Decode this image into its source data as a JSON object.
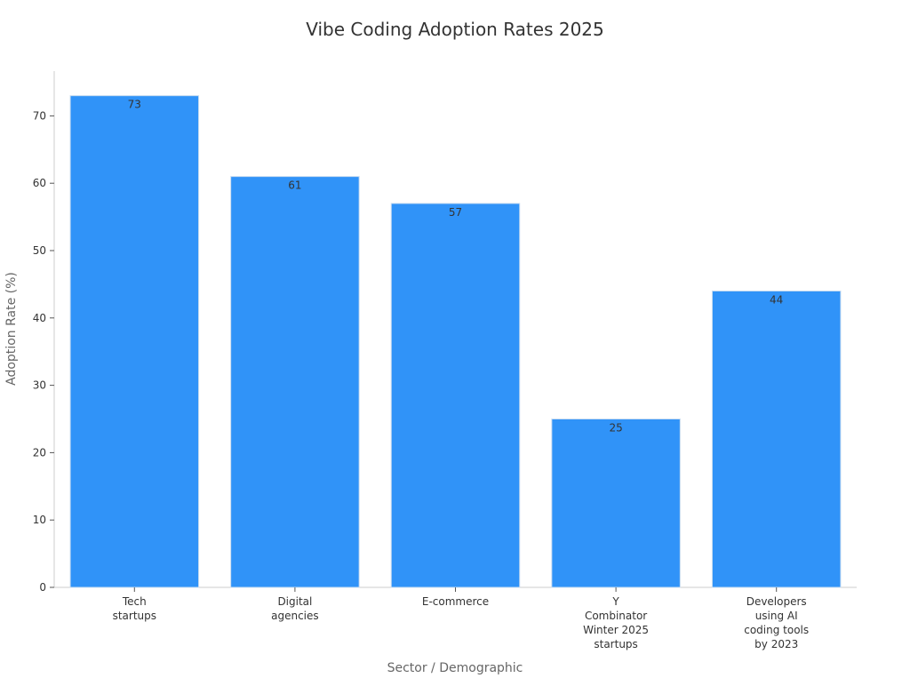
{
  "chart_data": {
    "type": "bar",
    "title": "Vibe Coding Adoption Rates 2025",
    "xlabel": "Sector / Demographic",
    "ylabel": "Adoption Rate (%)",
    "categories": [
      [
        "Tech",
        "startups"
      ],
      [
        "Digital",
        "agencies"
      ],
      [
        "E-commerce"
      ],
      [
        "Y",
        "Combinator",
        "Winter 2025",
        "startups"
      ],
      [
        "Developers",
        "using AI",
        "coding tools",
        "by 2023"
      ]
    ],
    "values": [
      73,
      61,
      57,
      25,
      44
    ],
    "data_labels": [
      "73",
      "61",
      "57",
      "25",
      "44"
    ],
    "y_ticks": [
      0,
      10,
      20,
      30,
      40,
      50,
      60,
      70
    ],
    "ylim": [
      0,
      76.65
    ],
    "grid": false,
    "bar_color": "#3093f8",
    "bar_edge_color": "#c9dcf0",
    "axis_color": "#cccccc",
    "text_color": "#333333",
    "label_color": "#666666"
  }
}
